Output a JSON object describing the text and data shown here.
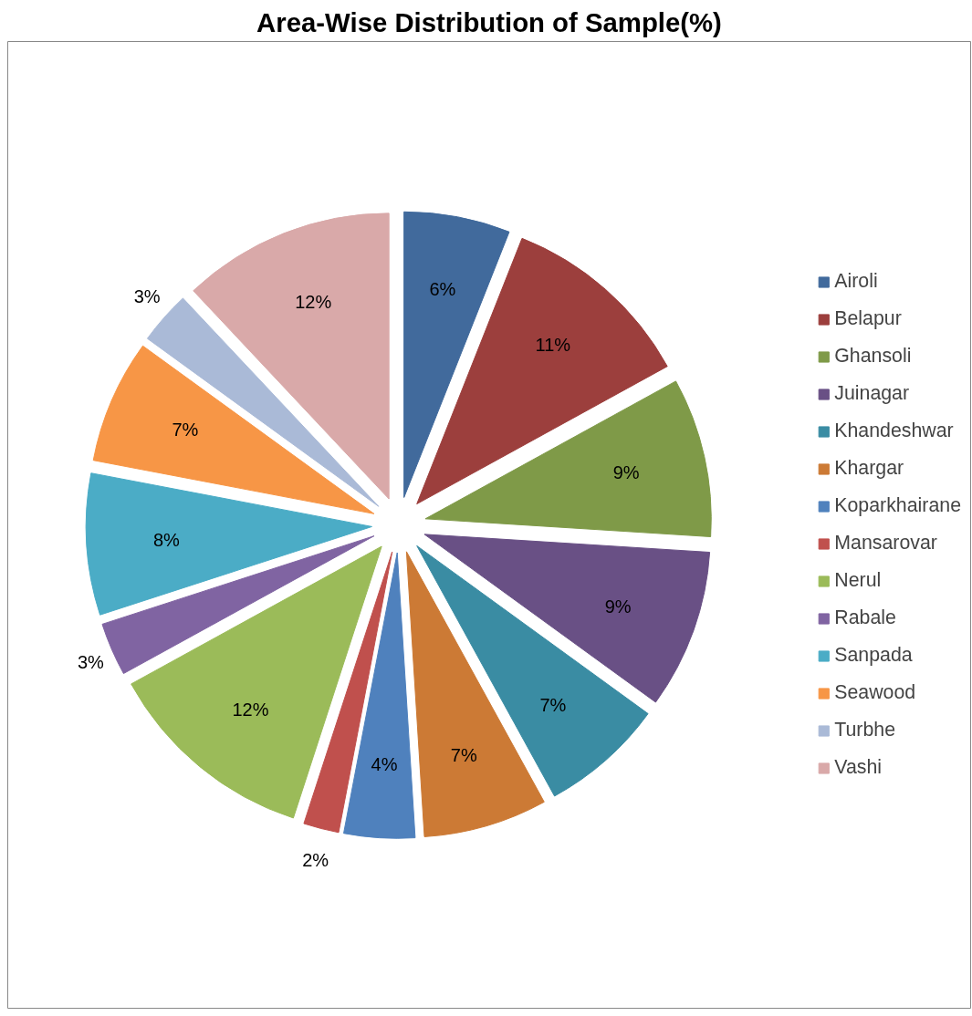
{
  "chart_data": {
    "type": "pie",
    "title": "Area-Wise Distribution of Sample(%)",
    "categories": [
      "Airoli",
      "Belapur",
      "Ghansoli",
      "Juinagar",
      "Khandeshwar",
      "Khargar",
      "Koparkhairane",
      "Mansarovar",
      "Nerul",
      "Rabale",
      "Sanpada",
      "Seawood",
      "Turbhe",
      "Vashi"
    ],
    "values": [
      6,
      11,
      9,
      9,
      7,
      7,
      4,
      2,
      12,
      3,
      8,
      7,
      3,
      12
    ],
    "colors": [
      "#416a9c",
      "#9c3f3d",
      "#7f9a48",
      "#695085",
      "#3a8ca3",
      "#cc7a35",
      "#4f81bd",
      "#c0504d",
      "#9bbb59",
      "#8064a2",
      "#4bacc6",
      "#f79646",
      "#aabad7",
      "#d9a9a9"
    ],
    "value_labels": [
      "6%",
      "11%",
      "9%",
      "9%",
      "7%",
      "7%",
      "4%",
      "2%",
      "12%",
      "3%",
      "8%",
      "7%",
      "3%",
      "12%"
    ],
    "legend": "right"
  }
}
